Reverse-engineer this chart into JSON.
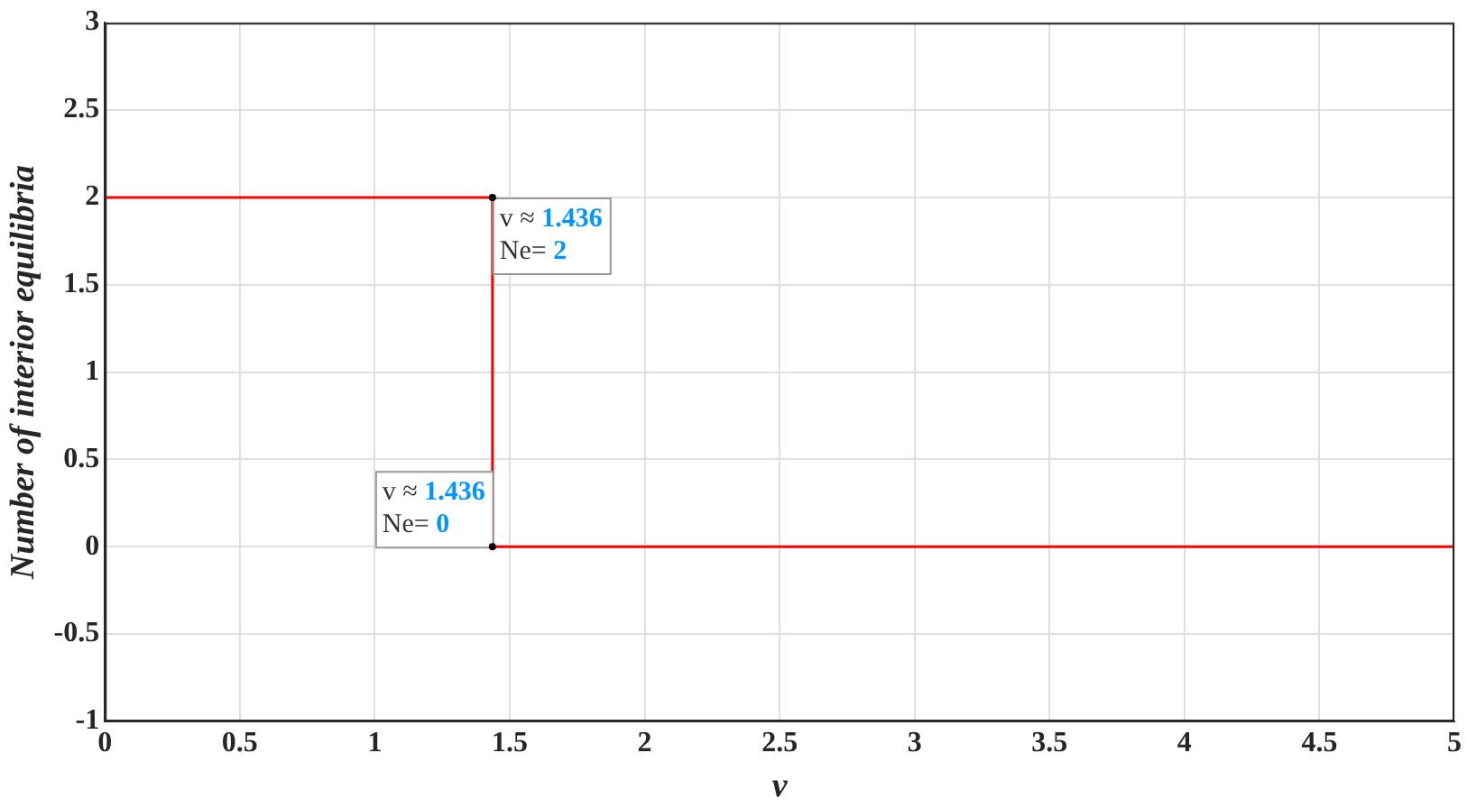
{
  "chart_data": {
    "type": "line",
    "xlabel": "v",
    "ylabel": "Number of interior equilibria",
    "series": [
      {
        "color": "#ff0000",
        "x": [
          0,
          1.436,
          1.436,
          5
        ],
        "values": [
          2,
          2,
          0,
          0
        ]
      }
    ],
    "xlim": [
      0,
      5
    ],
    "xticks": [
      0,
      0.5,
      1,
      1.5,
      2,
      2.5,
      3,
      3.5,
      4,
      4.5,
      5
    ],
    "ylim": [
      -1,
      3
    ],
    "yticks": [
      -1,
      -0.5,
      0,
      0.5,
      1,
      1.5,
      2,
      2.5,
      3
    ],
    "grid": true,
    "legend": false,
    "line_style": "solid",
    "annotations": [
      {
        "text": "v ≈ 1.436\nNe= 2",
        "x": 1.436,
        "y": 2
      },
      {
        "text": "v ≈ 1.436\nNe= 0",
        "x": 1.436,
        "y": 0
      }
    ]
  }
}
